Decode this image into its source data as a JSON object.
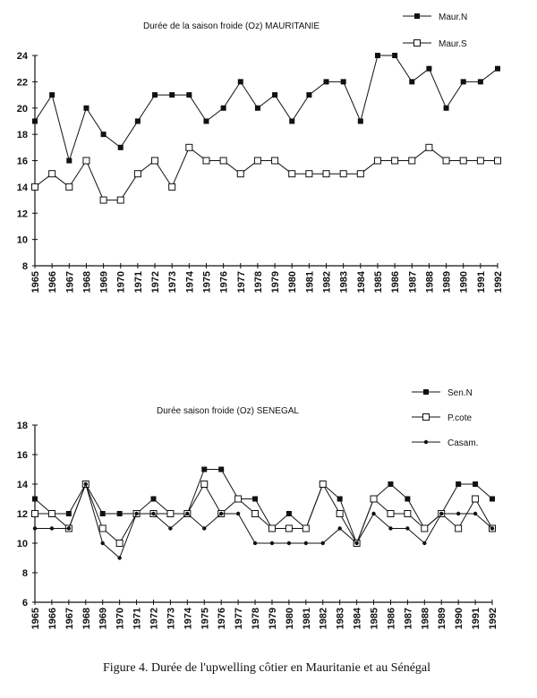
{
  "chart_data": [
    {
      "type": "line",
      "title": "Durée de la saison froide (Oz) MAURITANIE",
      "x": [
        1965,
        1966,
        1967,
        1968,
        1969,
        1970,
        1971,
        1972,
        1973,
        1974,
        1975,
        1976,
        1977,
        1978,
        1979,
        1980,
        1981,
        1982,
        1983,
        1984,
        1985,
        1986,
        1987,
        1988,
        1989,
        1990,
        1991,
        1992
      ],
      "ylim": [
        8,
        24
      ],
      "yticks": [
        8,
        10,
        12,
        14,
        16,
        18,
        20,
        22,
        24
      ],
      "legend": "top-right",
      "series": [
        {
          "name": "Maur.N",
          "marker": "filled-square",
          "values": [
            19,
            21,
            16,
            20,
            18,
            17,
            19,
            21,
            21,
            21,
            19,
            20,
            22,
            20,
            21,
            19,
            21,
            22,
            22,
            19,
            24,
            24,
            22,
            23,
            20,
            22,
            22,
            23
          ]
        },
        {
          "name": "Maur.S",
          "marker": "open-square",
          "values": [
            14,
            15,
            14,
            16,
            13,
            13,
            15,
            16,
            14,
            17,
            16,
            16,
            15,
            16,
            16,
            15,
            15,
            15,
            15,
            15,
            16,
            16,
            16,
            17,
            16,
            16,
            16,
            16
          ]
        }
      ]
    },
    {
      "type": "line",
      "title": "Durée saison froide (Oz)  SENEGAL",
      "x": [
        1965,
        1966,
        1967,
        1968,
        1969,
        1970,
        1971,
        1972,
        1973,
        1974,
        1975,
        1976,
        1977,
        1978,
        1979,
        1980,
        1981,
        1982,
        1983,
        1984,
        1985,
        1986,
        1987,
        1988,
        1989,
        1990,
        1991,
        1992
      ],
      "ylim": [
        6,
        18
      ],
      "yticks": [
        6,
        8,
        10,
        12,
        14,
        16,
        18
      ],
      "legend": "top-right",
      "series": [
        {
          "name": "Sen.N",
          "marker": "filled-square",
          "values": [
            13,
            12,
            12,
            14,
            12,
            12,
            12,
            13,
            12,
            12,
            15,
            15,
            13,
            13,
            11,
            12,
            11,
            14,
            13,
            10,
            13,
            14,
            13,
            11,
            12,
            14,
            14,
            13
          ]
        },
        {
          "name": "P.cote",
          "marker": "open-square",
          "values": [
            12,
            12,
            11,
            14,
            11,
            10,
            12,
            12,
            12,
            12,
            14,
            12,
            13,
            12,
            11,
            11,
            11,
            14,
            12,
            10,
            13,
            12,
            12,
            11,
            12,
            11,
            13,
            11
          ]
        },
        {
          "name": "Casam.",
          "marker": "diamond",
          "values": [
            11,
            11,
            11,
            14,
            10,
            9,
            12,
            12,
            11,
            12,
            11,
            12,
            12,
            10,
            10,
            10,
            10,
            10,
            11,
            10,
            12,
            11,
            11,
            10,
            12,
            12,
            12,
            11
          ]
        }
      ]
    }
  ],
  "caption": "Figure 4.    Durée de l'upwelling côtier en Mauritanie et au Sénégal"
}
